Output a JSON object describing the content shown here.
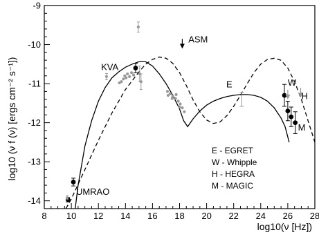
{
  "chart_data": {
    "type": "scatter",
    "xlabel": "log10(ν [Hz])",
    "ylabel": "log10 (ν f (ν) [ergs cm⁻² s⁻¹])",
    "xlim": [
      8,
      28
    ],
    "ylim": [
      -14.2,
      -9
    ],
    "x_ticks": [
      8,
      10,
      12,
      14,
      16,
      18,
      20,
      22,
      24,
      26,
      28
    ],
    "y_ticks": [
      -14,
      -13,
      -12,
      -11,
      -10,
      -9
    ],
    "grid": false,
    "annotations": [
      {
        "text": "UMRAO",
        "x": 10.35,
        "y": -13.85
      },
      {
        "text": "KVA",
        "x": 12.2,
        "y": -10.65
      },
      {
        "text": "ASM",
        "x": 18.65,
        "y": -9.95
      },
      {
        "text": "E",
        "x": 21.45,
        "y": -11.1
      },
      {
        "text": "W",
        "x": 26.0,
        "y": -11.05
      },
      {
        "text": "H",
        "x": 27.0,
        "y": -11.4
      },
      {
        "text": "M",
        "x": 26.75,
        "y": -12.2
      }
    ],
    "legend": [
      {
        "text": "E - EGRET"
      },
      {
        "text": "W - Whipple"
      },
      {
        "text": "H - HEGRA"
      },
      {
        "text": "M - MAGIC"
      }
    ],
    "legend_position": "lower-right",
    "series": [
      {
        "kind": "line",
        "style": "solid",
        "color": "#000000",
        "x": [
          10.0,
          10.5,
          11.0,
          11.5,
          12.0,
          12.5,
          13.0,
          13.5,
          14.0,
          14.5,
          15.0,
          15.5,
          16.0,
          16.5,
          17.0,
          17.5,
          18.0,
          18.3,
          18.6,
          19.0,
          19.5,
          20.0,
          20.5,
          21.0,
          21.5,
          22.0,
          22.5,
          23.0,
          23.5,
          24.0,
          24.5,
          25.0,
          25.5,
          25.8,
          26.1
        ],
        "y": [
          -15.0,
          -13.6,
          -12.6,
          -11.95,
          -11.45,
          -11.1,
          -10.85,
          -10.7,
          -10.58,
          -10.5,
          -10.44,
          -10.44,
          -10.55,
          -10.75,
          -11.0,
          -11.3,
          -11.65,
          -11.95,
          -12.1,
          -11.9,
          -11.7,
          -11.55,
          -11.45,
          -11.38,
          -11.33,
          -11.3,
          -11.28,
          -11.28,
          -11.3,
          -11.35,
          -11.45,
          -11.62,
          -11.88,
          -12.1,
          -12.5
        ]
      },
      {
        "kind": "line",
        "style": "dashed",
        "color": "#000000",
        "x": [
          9.6,
          10.0,
          11.0,
          12.0,
          13.0,
          14.0,
          15.0,
          15.5,
          16.0,
          16.5,
          17.0,
          17.5,
          18.0,
          18.5,
          19.0,
          19.5,
          20.0,
          20.5,
          21.0,
          21.5,
          22.0,
          22.5,
          23.0,
          23.5,
          24.0,
          24.5,
          25.0,
          25.5,
          26.0,
          26.5,
          27.0,
          27.5,
          28.0
        ],
        "y": [
          -14.2,
          -13.95,
          -13.2,
          -12.45,
          -11.75,
          -11.15,
          -10.7,
          -10.5,
          -10.38,
          -10.32,
          -10.35,
          -10.48,
          -10.72,
          -11.05,
          -11.42,
          -11.72,
          -11.93,
          -12.02,
          -11.98,
          -11.82,
          -11.58,
          -11.3,
          -11.0,
          -10.72,
          -10.5,
          -10.38,
          -10.35,
          -10.4,
          -10.6,
          -10.95,
          -11.4,
          -11.95,
          -12.5
        ]
      },
      {
        "kind": "points",
        "marker": "circle",
        "color": "#000000",
        "size": 3.4,
        "points": [
          {
            "x": 9.75,
            "y": -13.97,
            "err": 0.06
          },
          {
            "x": 10.15,
            "y": -13.52,
            "err": 0.1
          },
          {
            "x": 14.75,
            "y": -10.6,
            "err": 0.12
          },
          {
            "x": 25.75,
            "y": -11.3,
            "err": 0.28
          },
          {
            "x": 26.0,
            "y": -11.7,
            "err": 0.25
          },
          {
            "x": 26.25,
            "y": -11.85,
            "err": 0.25
          },
          {
            "x": 26.55,
            "y": -12.0,
            "err": 0.28
          }
        ]
      },
      {
        "kind": "points",
        "marker": "circle",
        "color": "#999999",
        "size": 2.1,
        "points": [
          {
            "x": 9.7,
            "y": -13.92,
            "err": 0.05
          },
          {
            "x": 12.6,
            "y": -10.82,
            "err": 0.08
          },
          {
            "x": 13.55,
            "y": -10.98,
            "err": 0
          },
          {
            "x": 13.7,
            "y": -10.95,
            "err": 0
          },
          {
            "x": 13.85,
            "y": -10.88,
            "err": 0
          },
          {
            "x": 13.95,
            "y": -10.8,
            "err": 0
          },
          {
            "x": 14.05,
            "y": -10.85,
            "err": 0
          },
          {
            "x": 14.15,
            "y": -10.75,
            "err": 0
          },
          {
            "x": 14.3,
            "y": -10.82,
            "err": 0
          },
          {
            "x": 14.45,
            "y": -10.72,
            "err": 0
          },
          {
            "x": 14.6,
            "y": -10.78,
            "err": 0
          },
          {
            "x": 15.05,
            "y": -10.75,
            "err": 0.2
          },
          {
            "x": 15.15,
            "y": -10.95,
            "err": 0.2
          },
          {
            "x": 14.95,
            "y": -9.55,
            "err": 0.13
          },
          {
            "x": 17.1,
            "y": -11.2,
            "err": 0
          },
          {
            "x": 17.3,
            "y": -11.26,
            "err": 0
          },
          {
            "x": 17.5,
            "y": -11.32,
            "err": 0
          },
          {
            "x": 17.7,
            "y": -11.38,
            "err": 0
          },
          {
            "x": 17.9,
            "y": -11.45,
            "err": 0
          },
          {
            "x": 18.05,
            "y": -11.52,
            "err": 0
          },
          {
            "x": 18.2,
            "y": -11.62,
            "err": 0
          },
          {
            "x": 18.35,
            "y": -11.72,
            "err": 0
          },
          {
            "x": 17.15,
            "y": -11.3,
            "err": 0
          },
          {
            "x": 17.45,
            "y": -11.38,
            "err": 0
          },
          {
            "x": 17.75,
            "y": -11.28,
            "err": 0
          },
          {
            "x": 18.0,
            "y": -11.6,
            "err": 0
          }
        ]
      },
      {
        "kind": "error_bars",
        "color": "#999999",
        "bars": [
          {
            "x": 22.6,
            "y": -11.4,
            "err": 0.18
          }
        ]
      },
      {
        "kind": "upper_limits",
        "color": "#999999",
        "arrows": [
          {
            "x": 26.0,
            "y": -11.35
          },
          {
            "x": 26.95,
            "y": -11.3
          }
        ]
      },
      {
        "kind": "upper_limits",
        "color": "#000000",
        "arrows": [
          {
            "x": 18.2,
            "y": -10.05
          }
        ]
      }
    ]
  }
}
